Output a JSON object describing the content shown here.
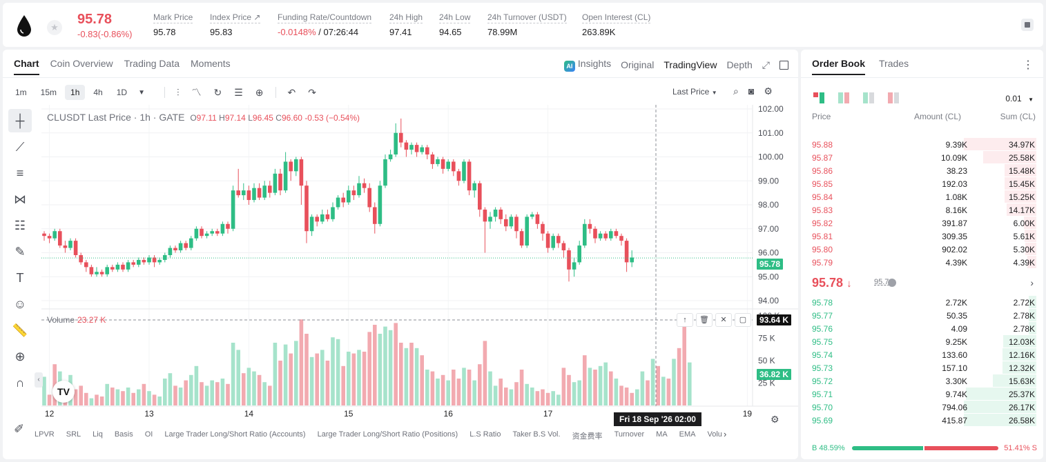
{
  "header": {
    "last_price": "95.78",
    "change": "-0.83(-0.86%)",
    "stats": [
      {
        "label": "Mark Price",
        "value": "95.78"
      },
      {
        "label": "Index Price ↗",
        "value": "95.83"
      },
      {
        "label": "Funding Rate/Countdown",
        "value_red": "-0.0148%",
        "value": " / 07:26:44"
      },
      {
        "label": "24h High",
        "value": "97.41"
      },
      {
        "label": "24h Low",
        "value": "94.65"
      },
      {
        "label": "24h Turnover (USDT)",
        "value": "78.99M"
      },
      {
        "label": "Open Interest (CL)",
        "value": "263.89K"
      }
    ]
  },
  "chart_tabs": [
    "Chart",
    "Coin Overview",
    "Trading Data",
    "Moments"
  ],
  "view_tabs": {
    "ai": "AI",
    "insights": "Insights",
    "original": "Original",
    "tradingview": "TradingView",
    "depth": "Depth"
  },
  "timeframes": [
    "1m",
    "15m",
    "1h",
    "4h",
    "1D"
  ],
  "price_source": "Last Price",
  "legend": {
    "title": "CLUSDT Last Price · 1h · GATE",
    "o_label": "O",
    "o": "97.11",
    "h_label": "H",
    "h": "97.14",
    "l_label": "L",
    "l": "96.45",
    "c_label": "C",
    "c": "96.60",
    "chg": "-0.53 (−0.54%)"
  },
  "volume": {
    "label": "Volume",
    "value": "23.27 K"
  },
  "tags": {
    "price": "95.78",
    "vol_high": "93.64 K",
    "vol_cur": "36.82 K"
  },
  "time_tag": "Fri 18 Sep '26   02:00",
  "indicators": [
    "LPVR",
    "SRL",
    "Liq",
    "Basis",
    "OI",
    "Large Trader Long/Short Ratio (Accounts)",
    "Large Trader Long/Short Ratio (Positions)",
    "L.S Ratio",
    "Taker B.S Vol.",
    "资金费率",
    "Turnover",
    "MA",
    "EMA",
    "Volu"
  ],
  "colors": {
    "up": "#2ebd85",
    "down": "#e8505b",
    "up_vol": "#a6e3cb",
    "down_vol": "#f2aab0"
  },
  "chart_data": {
    "type": "candlestick",
    "x_ticks": [
      "12",
      "13",
      "14",
      "15",
      "16",
      "17",
      "19"
    ],
    "y_ticks": [
      "102.00",
      "101.00",
      "100.00",
      "99.00",
      "98.00",
      "97.00",
      "96.00",
      "95.00",
      "94.00"
    ],
    "vol_ticks": [
      "100 K",
      "75 K",
      "50 K",
      "25 K"
    ],
    "price_range": [
      94.0,
      102.0
    ],
    "vol_range": [
      0,
      100
    ],
    "candles": [
      [
        96.8,
        96.7,
        96.9,
        96.5
      ],
      [
        96.7,
        96.6,
        96.8,
        96.4
      ],
      [
        96.6,
        96.9,
        97.0,
        96.5
      ],
      [
        96.9,
        96.3,
        97.0,
        96.2
      ],
      [
        96.3,
        96.2,
        96.5,
        96.0
      ],
      [
        96.2,
        96.5,
        96.6,
        96.1
      ],
      [
        96.5,
        95.9,
        96.6,
        95.8
      ],
      [
        95.9,
        95.6,
        96.0,
        95.5
      ],
      [
        95.6,
        95.4,
        95.7,
        95.2
      ],
      [
        95.4,
        95.1,
        95.5,
        95.0
      ],
      [
        95.1,
        95.2,
        95.4,
        95.0
      ],
      [
        95.2,
        95.1,
        95.3,
        95.0
      ],
      [
        95.1,
        95.4,
        95.5,
        95.0
      ],
      [
        95.4,
        95.3,
        95.5,
        95.2
      ],
      [
        95.3,
        95.5,
        95.6,
        95.2
      ],
      [
        95.5,
        95.3,
        95.6,
        95.2
      ],
      [
        95.3,
        95.6,
        95.7,
        95.2
      ],
      [
        95.6,
        95.5,
        95.7,
        95.4
      ],
      [
        95.5,
        95.7,
        95.8,
        95.4
      ],
      [
        95.7,
        95.6,
        95.8,
        95.5
      ],
      [
        95.6,
        95.8,
        95.9,
        95.5
      ],
      [
        95.8,
        95.6,
        95.9,
        95.4
      ],
      [
        95.6,
        95.7,
        95.8,
        95.5
      ],
      [
        95.7,
        95.9,
        96.0,
        95.6
      ],
      [
        95.9,
        96.2,
        96.3,
        95.8
      ],
      [
        96.2,
        96.1,
        96.3,
        96.0
      ],
      [
        96.1,
        96.4,
        96.5,
        96.0
      ],
      [
        96.4,
        96.2,
        96.5,
        96.1
      ],
      [
        96.2,
        96.6,
        96.7,
        96.1
      ],
      [
        96.6,
        97.0,
        97.1,
        96.5
      ],
      [
        97.0,
        96.7,
        97.1,
        96.6
      ],
      [
        96.7,
        96.8,
        96.9,
        96.6
      ],
      [
        96.8,
        96.9,
        97.0,
        96.7
      ],
      [
        96.9,
        96.8,
        97.0,
        96.7
      ],
      [
        96.8,
        97.2,
        97.3,
        96.7
      ],
      [
        97.2,
        97.0,
        97.3,
        96.8
      ],
      [
        97.0,
        98.6,
        98.8,
        96.9
      ],
      [
        98.6,
        98.4,
        99.5,
        98.3
      ],
      [
        98.4,
        98.6,
        98.9,
        98.2
      ],
      [
        98.6,
        98.2,
        98.8,
        98.0
      ],
      [
        98.2,
        98.7,
        98.9,
        98.1
      ],
      [
        98.7,
        98.3,
        98.9,
        98.2
      ],
      [
        98.3,
        98.8,
        99.0,
        98.2
      ],
      [
        98.8,
        98.5,
        99.0,
        98.3
      ],
      [
        98.5,
        99.3,
        99.5,
        98.4
      ],
      [
        99.3,
        98.6,
        99.5,
        98.4
      ],
      [
        98.6,
        99.8,
        100.2,
        98.5
      ],
      [
        99.8,
        99.4,
        99.9,
        99.0
      ],
      [
        99.4,
        99.9,
        100.0,
        99.2
      ],
      [
        99.9,
        98.8,
        100.0,
        98.0
      ],
      [
        98.8,
        96.9,
        99.0,
        96.4
      ],
      [
        96.9,
        97.5,
        97.6,
        96.7
      ],
      [
        97.5,
        97.3,
        97.6,
        97.1
      ],
      [
        97.3,
        97.6,
        97.8,
        97.2
      ],
      [
        97.6,
        97.4,
        97.8,
        97.3
      ],
      [
        97.4,
        97.9,
        98.1,
        97.3
      ],
      [
        97.9,
        98.3,
        98.4,
        97.8
      ],
      [
        98.3,
        98.1,
        98.5,
        97.9
      ],
      [
        98.1,
        98.6,
        98.8,
        98.0
      ],
      [
        98.6,
        98.4,
        98.8,
        98.2
      ],
      [
        98.4,
        98.9,
        99.2,
        98.3
      ],
      [
        98.9,
        98.7,
        99.1,
        98.5
      ],
      [
        98.7,
        97.9,
        98.9,
        97.7
      ],
      [
        97.9,
        97.2,
        98.1,
        96.8
      ],
      [
        97.2,
        98.8,
        99.0,
        97.1
      ],
      [
        98.8,
        99.9,
        100.1,
        98.7
      ],
      [
        99.9,
        100.1,
        100.3,
        99.8
      ],
      [
        100.1,
        101.0,
        101.4,
        100.0
      ],
      [
        101.0,
        100.6,
        101.6,
        100.4
      ],
      [
        100.6,
        100.3,
        100.7,
        100.0
      ],
      [
        100.3,
        100.5,
        100.6,
        100.1
      ],
      [
        100.5,
        100.2,
        100.6,
        100.0
      ],
      [
        100.2,
        100.4,
        100.5,
        100.1
      ],
      [
        100.4,
        100.1,
        100.5,
        99.9
      ],
      [
        100.1,
        99.7,
        100.2,
        99.5
      ],
      [
        99.7,
        99.9,
        100.0,
        99.6
      ],
      [
        99.9,
        99.5,
        100.0,
        99.3
      ],
      [
        99.5,
        99.8,
        99.9,
        99.4
      ],
      [
        99.8,
        99.4,
        99.9,
        99.2
      ],
      [
        99.4,
        99.0,
        99.5,
        98.8
      ],
      [
        99.0,
        99.8,
        99.9,
        98.9
      ],
      [
        99.8,
        98.6,
        99.9,
        98.4
      ],
      [
        98.6,
        98.9,
        99.0,
        98.3
      ],
      [
        98.9,
        97.8,
        99.0,
        97.5
      ],
      [
        97.8,
        97.3,
        97.9,
        96.0
      ],
      [
        97.3,
        97.5,
        97.7,
        97.0
      ],
      [
        97.5,
        97.8,
        97.9,
        97.3
      ],
      [
        97.8,
        97.4,
        97.9,
        97.2
      ],
      [
        97.4,
        97.1,
        97.6,
        96.9
      ],
      [
        97.1,
        97.5,
        97.6,
        97.0
      ],
      [
        97.5,
        96.9,
        97.6,
        96.6
      ],
      [
        96.9,
        96.3,
        97.0,
        96.2
      ],
      [
        96.3,
        97.5,
        97.6,
        96.2
      ],
      [
        97.5,
        97.6,
        97.7,
        97.4
      ],
      [
        97.6,
        97.2,
        97.7,
        97.0
      ],
      [
        97.2,
        96.8,
        97.3,
        96.5
      ],
      [
        96.8,
        96.2,
        96.9,
        96.0
      ],
      [
        96.2,
        96.7,
        96.8,
        96.1
      ],
      [
        96.7,
        96.4,
        96.8,
        96.2
      ],
      [
        96.4,
        96.1,
        96.5,
        95.8
      ],
      [
        96.1,
        95.3,
        96.2,
        94.8
      ],
      [
        95.3,
        95.6,
        95.8,
        95.0
      ],
      [
        95.6,
        96.3,
        96.5,
        95.5
      ],
      [
        96.3,
        97.2,
        97.4,
        96.2
      ],
      [
        97.2,
        97.0,
        97.4,
        96.8
      ],
      [
        97.0,
        96.6,
        97.1,
        96.4
      ],
      [
        96.6,
        96.8,
        96.9,
        96.5
      ],
      [
        96.8,
        96.6,
        96.9,
        96.5
      ],
      [
        96.6,
        96.9,
        97.0,
        96.5
      ],
      [
        96.9,
        96.7,
        97.0,
        96.6
      ],
      [
        96.7,
        96.5,
        96.8,
        96.3
      ],
      [
        96.5,
        95.6,
        96.6,
        95.2
      ],
      [
        95.6,
        95.8,
        96.1,
        95.4
      ]
    ],
    "volumes": [
      [
        32,
        0
      ],
      [
        12,
        1
      ],
      [
        46,
        1
      ],
      [
        38,
        0
      ],
      [
        20,
        1
      ],
      [
        34,
        0
      ],
      [
        18,
        1
      ],
      [
        22,
        1
      ],
      [
        14,
        1
      ],
      [
        8,
        0
      ],
      [
        12,
        1
      ],
      [
        10,
        1
      ],
      [
        24,
        0
      ],
      [
        20,
        1
      ],
      [
        18,
        0
      ],
      [
        16,
        1
      ],
      [
        20,
        0
      ],
      [
        14,
        1
      ],
      [
        18,
        0
      ],
      [
        24,
        1
      ],
      [
        16,
        0
      ],
      [
        12,
        1
      ],
      [
        10,
        0
      ],
      [
        30,
        0
      ],
      [
        36,
        0
      ],
      [
        22,
        1
      ],
      [
        20,
        0
      ],
      [
        28,
        1
      ],
      [
        34,
        0
      ],
      [
        44,
        0
      ],
      [
        26,
        1
      ],
      [
        22,
        0
      ],
      [
        28,
        0
      ],
      [
        26,
        1
      ],
      [
        30,
        0
      ],
      [
        24,
        1
      ],
      [
        70,
        0
      ],
      [
        62,
        0
      ],
      [
        36,
        1
      ],
      [
        42,
        0
      ],
      [
        38,
        0
      ],
      [
        34,
        1
      ],
      [
        26,
        0
      ],
      [
        22,
        1
      ],
      [
        70,
        0
      ],
      [
        50,
        1
      ],
      [
        68,
        0
      ],
      [
        58,
        1
      ],
      [
        72,
        0
      ],
      [
        96,
        1
      ],
      [
        80,
        1
      ],
      [
        54,
        0
      ],
      [
        58,
        1
      ],
      [
        62,
        0
      ],
      [
        50,
        1
      ],
      [
        76,
        0
      ],
      [
        74,
        0
      ],
      [
        44,
        1
      ],
      [
        60,
        0
      ],
      [
        58,
        1
      ],
      [
        62,
        0
      ],
      [
        60,
        1
      ],
      [
        82,
        1
      ],
      [
        90,
        1
      ],
      [
        80,
        0
      ],
      [
        88,
        0
      ],
      [
        84,
        0
      ],
      [
        92,
        1
      ],
      [
        70,
        1
      ],
      [
        64,
        0
      ],
      [
        70,
        1
      ],
      [
        64,
        0
      ],
      [
        56,
        1
      ],
      [
        40,
        0
      ],
      [
        38,
        1
      ],
      [
        30,
        0
      ],
      [
        34,
        1
      ],
      [
        28,
        0
      ],
      [
        40,
        1
      ],
      [
        30,
        1
      ],
      [
        42,
        0
      ],
      [
        40,
        1
      ],
      [
        28,
        0
      ],
      [
        46,
        1
      ],
      [
        72,
        1
      ],
      [
        38,
        0
      ],
      [
        22,
        0
      ],
      [
        30,
        1
      ],
      [
        20,
        1
      ],
      [
        18,
        0
      ],
      [
        26,
        1
      ],
      [
        40,
        1
      ],
      [
        24,
        0
      ],
      [
        20,
        0
      ],
      [
        16,
        1
      ],
      [
        18,
        1
      ],
      [
        14,
        1
      ],
      [
        16,
        0
      ],
      [
        12,
        0
      ],
      [
        42,
        1
      ],
      [
        34,
        1
      ],
      [
        26,
        0
      ],
      [
        28,
        0
      ],
      [
        56,
        1
      ],
      [
        42,
        0
      ],
      [
        40,
        1
      ],
      [
        44,
        0
      ],
      [
        48,
        0
      ],
      [
        38,
        1
      ],
      [
        30,
        0
      ],
      [
        22,
        1
      ],
      [
        20,
        1
      ],
      [
        14,
        1
      ],
      [
        18,
        0
      ],
      [
        38,
        0
      ],
      [
        28,
        1
      ],
      [
        52,
        0
      ],
      [
        44,
        1
      ],
      [
        32,
        0
      ],
      [
        30,
        1
      ],
      [
        52,
        0
      ],
      [
        64,
        1
      ],
      [
        96,
        1
      ],
      [
        48,
        0
      ]
    ]
  },
  "orderbook": {
    "tabs": [
      "Order Book",
      "Trades"
    ],
    "precision": "0.01",
    "headers": {
      "price": "Price",
      "amount": "Amount (CL)",
      "sum": "Sum (CL)"
    },
    "asks": [
      {
        "p": "95.88",
        "a": "9.39K",
        "s": "34.97K",
        "d": 1.0
      },
      {
        "p": "95.87",
        "a": "10.09K",
        "s": "25.58K",
        "d": 0.73
      },
      {
        "p": "95.86",
        "a": "38.23",
        "s": "15.48K",
        "d": 0.44
      },
      {
        "p": "95.85",
        "a": "192.03",
        "s": "15.45K",
        "d": 0.44
      },
      {
        "p": "95.84",
        "a": "1.08K",
        "s": "15.25K",
        "d": 0.436
      },
      {
        "p": "95.83",
        "a": "8.16K",
        "s": "14.17K",
        "d": 0.405
      },
      {
        "p": "95.82",
        "a": "391.87",
        "s": "6.00K",
        "d": 0.17
      },
      {
        "p": "95.81",
        "a": "309.35",
        "s": "5.61K",
        "d": 0.16
      },
      {
        "p": "95.80",
        "a": "902.02",
        "s": "5.30K",
        "d": 0.15
      },
      {
        "p": "95.79",
        "a": "4.39K",
        "s": "4.39K",
        "d": 0.125
      }
    ],
    "mid": {
      "price": "95.78",
      "arrow": "↓",
      "mark": "95.78",
      "chev": "›"
    },
    "bids": [
      {
        "p": "95.78",
        "a": "2.72K",
        "s": "2.72K",
        "d": 0.104
      },
      {
        "p": "95.77",
        "a": "50.35",
        "s": "2.78K",
        "d": 0.106
      },
      {
        "p": "95.76",
        "a": "4.09",
        "s": "2.78K",
        "d": 0.106
      },
      {
        "p": "95.75",
        "a": "9.25K",
        "s": "12.03K",
        "d": 0.46
      },
      {
        "p": "95.74",
        "a": "133.60",
        "s": "12.16K",
        "d": 0.465
      },
      {
        "p": "95.73",
        "a": "157.10",
        "s": "12.32K",
        "d": 0.47
      },
      {
        "p": "95.72",
        "a": "3.30K",
        "s": "15.63K",
        "d": 0.6
      },
      {
        "p": "95.71",
        "a": "9.74K",
        "s": "25.37K",
        "d": 0.97
      },
      {
        "p": "95.70",
        "a": "794.06",
        "s": "26.17K",
        "d": 1.0
      },
      {
        "p": "95.69",
        "a": "415.87",
        "s": "26.58K",
        "d": 1.0
      }
    ],
    "ratio": {
      "buy": "B 48.59%",
      "sell": "51.41% S",
      "buy_pct": 48.59
    }
  }
}
